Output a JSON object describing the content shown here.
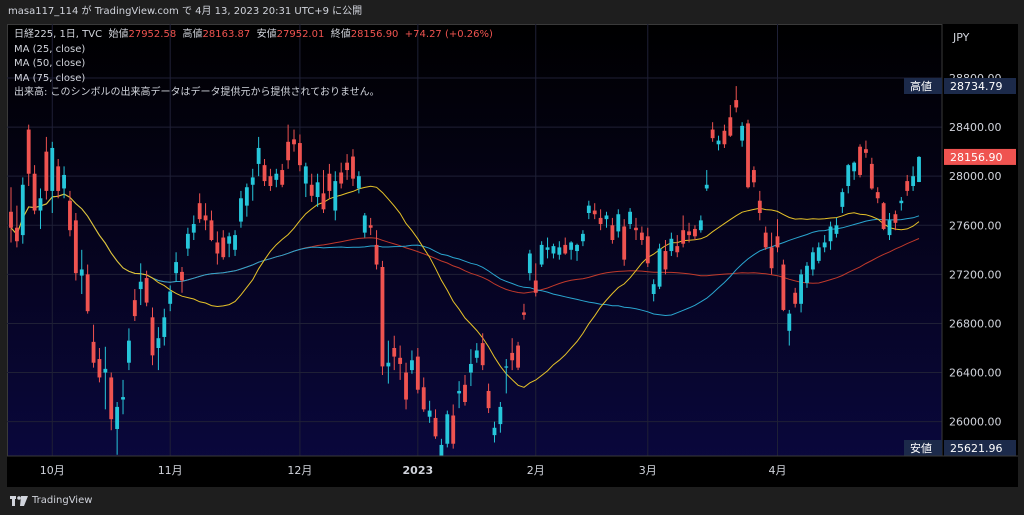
{
  "header": {
    "text": "masa117_114 が TradingView.com で 4月 13, 2023 20:31 UTC+9 に公開"
  },
  "legend": {
    "symbol_line": "日経225, 1日, TVC",
    "open_label": "始値",
    "open_value": "27952.58",
    "high_label": "高値",
    "high_value": "28163.87",
    "low_label": "安値",
    "low_value": "27952.01",
    "close_label": "終値",
    "close_value": "28156.90",
    "change": "+74.27 (+0.26%)",
    "ma25": "MA (25, close)",
    "ma50": "MA (50, close)",
    "ma75": "MA (75, close)",
    "volume_note": "出来高: このシンボルの出来高データはデータ提供元から提供されておりません。"
  },
  "footer": {
    "brand": "TradingView"
  },
  "colors": {
    "up": "#26c6da",
    "down": "#ef5350",
    "ma25": "#e6c229",
    "ma50": "#2aa6d0",
    "ma75": "#c0392b",
    "grid": "#1f2036",
    "axis_text": "#d1d4dc",
    "badge_blue": "#1c2a4a"
  },
  "chart_data": {
    "type": "candlestick",
    "currency": "JPY",
    "y_ticks": [
      26000,
      26400,
      26800,
      27200,
      27600,
      28000,
      28400,
      28800
    ],
    "y_tick_labels": [
      "26000.00",
      "26400.00",
      "26800.00",
      "27200.00",
      "27600.00",
      "28000.00",
      "28400.00",
      "28800.00"
    ],
    "ylim": [
      25720,
      29240
    ],
    "x_labels": [
      {
        "label": "10月",
        "date": "2022-10-03"
      },
      {
        "label": "11月",
        "date": "2022-11-01"
      },
      {
        "label": "12月",
        "date": "2022-12-01"
      },
      {
        "label": "2023",
        "date": "2023-01-04"
      },
      {
        "label": "2月",
        "date": "2023-02-01"
      },
      {
        "label": "3月",
        "date": "2023-03-01"
      },
      {
        "label": "4月",
        "date": "2023-04-03"
      }
    ],
    "markers": [
      {
        "label": "高値",
        "value": 28734.79,
        "text": "28734.79"
      },
      {
        "label": "終値",
        "value": 28156.9,
        "text": "28156.90"
      },
      {
        "label": "安値",
        "value": 25621.96,
        "text": "25621.96"
      }
    ],
    "candles": [
      [
        27710,
        27910,
        27460,
        27580
      ],
      [
        27580,
        27760,
        27420,
        27470
      ],
      [
        27520,
        27990,
        27450,
        27930
      ],
      [
        28380,
        28420,
        27920,
        28020
      ],
      [
        28020,
        28090,
        27690,
        27720
      ],
      [
        27720,
        27900,
        27570,
        27820
      ],
      [
        28200,
        28320,
        27810,
        27880
      ],
      [
        27880,
        28280,
        27700,
        28230
      ],
      [
        28080,
        28140,
        27820,
        27880
      ],
      [
        27900,
        28080,
        27820,
        28010
      ],
      [
        27800,
        27880,
        27510,
        27560
      ],
      [
        27640,
        27700,
        27150,
        27210
      ],
      [
        27190,
        27400,
        27040,
        27240
      ],
      [
        27200,
        27280,
        26880,
        26900
      ],
      [
        26650,
        26790,
        26440,
        26480
      ],
      [
        26510,
        26600,
        26320,
        26360
      ],
      [
        26400,
        26610,
        26100,
        26430
      ],
      [
        26360,
        26400,
        25930,
        26020
      ],
      [
        25940,
        26160,
        25730,
        26120
      ],
      [
        26180,
        26340,
        26060,
        26200
      ],
      [
        26480,
        26760,
        26420,
        26660
      ],
      [
        26990,
        27080,
        26820,
        26860
      ],
      [
        27080,
        27290,
        26950,
        27140
      ],
      [
        27170,
        27230,
        26940,
        26970
      ],
      [
        26850,
        26930,
        26460,
        26540
      ],
      [
        26600,
        26770,
        26420,
        26680
      ],
      [
        26690,
        26920,
        26620,
        26850
      ],
      [
        26960,
        27110,
        26900,
        27060
      ],
      [
        27210,
        27380,
        27140,
        27300
      ],
      [
        27220,
        27260,
        27050,
        27150
      ],
      [
        27410,
        27580,
        27350,
        27530
      ],
      [
        27540,
        27680,
        27480,
        27610
      ],
      [
        27780,
        27860,
        27620,
        27650
      ],
      [
        27680,
        27780,
        27560,
        27640
      ],
      [
        27640,
        27720,
        27470,
        27480
      ],
      [
        27460,
        27550,
        27280,
        27370
      ],
      [
        27500,
        27560,
        27320,
        27340
      ],
      [
        27450,
        27540,
        27340,
        27510
      ],
      [
        27400,
        27560,
        27350,
        27520
      ],
      [
        27630,
        27880,
        27580,
        27820
      ],
      [
        27760,
        27940,
        27670,
        27910
      ],
      [
        27930,
        28060,
        27800,
        27990
      ],
      [
        28100,
        28320,
        28000,
        28230
      ],
      [
        28090,
        28140,
        27920,
        27960
      ],
      [
        28000,
        28060,
        27880,
        27920
      ],
      [
        27970,
        28060,
        27910,
        28020
      ],
      [
        28050,
        28100,
        27910,
        27930
      ],
      [
        28280,
        28420,
        28060,
        28130
      ],
      [
        28300,
        28380,
        28200,
        28260
      ],
      [
        28270,
        28340,
        28040,
        28090
      ],
      [
        27940,
        28110,
        27830,
        28080
      ],
      [
        27930,
        28020,
        27790,
        27840
      ],
      [
        27830,
        28020,
        27750,
        27950
      ],
      [
        27860,
        28050,
        27700,
        27730
      ],
      [
        28020,
        28100,
        27820,
        27880
      ],
      [
        27720,
        28040,
        27640,
        27960
      ],
      [
        28030,
        28110,
        27900,
        27940
      ],
      [
        28110,
        28180,
        27970,
        28050
      ],
      [
        28160,
        28220,
        27920,
        27980
      ],
      [
        27900,
        28040,
        27860,
        28000
      ],
      [
        27540,
        27700,
        27500,
        27680
      ],
      [
        27600,
        27660,
        27520,
        27580
      ],
      [
        27440,
        27560,
        27240,
        27280
      ],
      [
        27260,
        27310,
        26380,
        26450
      ],
      [
        26450,
        26660,
        26310,
        26480
      ],
      [
        26600,
        26700,
        26420,
        26530
      ],
      [
        26520,
        26620,
        26340,
        26470
      ],
      [
        26400,
        26480,
        26100,
        26180
      ],
      [
        26420,
        26580,
        26390,
        26500
      ],
      [
        26530,
        26600,
        26230,
        26260
      ],
      [
        26280,
        26360,
        26080,
        26100
      ],
      [
        26040,
        26170,
        25990,
        26090
      ],
      [
        26030,
        26100,
        25860,
        25880
      ],
      [
        25720,
        25860,
        25621,
        25810
      ],
      [
        25820,
        26090,
        25790,
        26060
      ],
      [
        26050,
        26140,
        25780,
        25820
      ],
      [
        26230,
        26330,
        26110,
        26250
      ],
      [
        26300,
        26380,
        26130,
        26160
      ],
      [
        26400,
        26590,
        26290,
        26470
      ],
      [
        26520,
        26640,
        26480,
        26580
      ],
      [
        26640,
        26720,
        26420,
        26460
      ],
      [
        26250,
        26310,
        26070,
        26110
      ],
      [
        25890,
        26000,
        25830,
        25950
      ],
      [
        25980,
        26160,
        25910,
        26120
      ],
      [
        26440,
        26510,
        26230,
        26450
      ],
      [
        26560,
        26680,
        26420,
        26500
      ],
      [
        26620,
        26650,
        26420,
        26440
      ],
      [
        26890,
        26960,
        26830,
        26870
      ],
      [
        27210,
        27400,
        27150,
        27370
      ],
      [
        27150,
        27290,
        27020,
        27050
      ],
      [
        27280,
        27470,
        27260,
        27440
      ],
      [
        27400,
        27500,
        27330,
        27420
      ],
      [
        27370,
        27450,
        27330,
        27430
      ],
      [
        27360,
        27470,
        27320,
        27420
      ],
      [
        27440,
        27500,
        27360,
        27370
      ],
      [
        27400,
        27470,
        27320,
        27460
      ],
      [
        27390,
        27450,
        27310,
        27440
      ],
      [
        27470,
        27560,
        27430,
        27530
      ],
      [
        27700,
        27800,
        27650,
        27760
      ],
      [
        27720,
        27780,
        27650,
        27690
      ],
      [
        27660,
        27730,
        27560,
        27610
      ],
      [
        27650,
        27710,
        27580,
        27680
      ],
      [
        27600,
        27660,
        27450,
        27480
      ],
      [
        27550,
        27730,
        27500,
        27690
      ],
      [
        27590,
        27650,
        27270,
        27320
      ],
      [
        27610,
        27740,
        27570,
        27710
      ],
      [
        27580,
        27660,
        27480,
        27560
      ],
      [
        27540,
        27590,
        27440,
        27480
      ],
      [
        27510,
        27580,
        27260,
        27290
      ],
      [
        27040,
        27160,
        26980,
        27120
      ],
      [
        27100,
        27450,
        27080,
        27410
      ],
      [
        27390,
        27480,
        27200,
        27240
      ],
      [
        27390,
        27540,
        27350,
        27490
      ],
      [
        27430,
        27520,
        27340,
        27380
      ],
      [
        27560,
        27680,
        27420,
        27450
      ],
      [
        27550,
        27620,
        27460,
        27520
      ],
      [
        27570,
        27600,
        27480,
        27510
      ],
      [
        27560,
        27680,
        27540,
        27640
      ],
      [
        27900,
        28050,
        27880,
        27930
      ],
      [
        28380,
        28440,
        28280,
        28310
      ],
      [
        28260,
        28330,
        28210,
        28290
      ],
      [
        28370,
        28420,
        28230,
        28260
      ],
      [
        28480,
        28580,
        28320,
        28330
      ],
      [
        28620,
        28734,
        28520,
        28560
      ],
      [
        28290,
        28440,
        28240,
        28410
      ],
      [
        28430,
        28460,
        27900,
        27910
      ],
      [
        28050,
        28080,
        27910,
        27950
      ],
      [
        27800,
        27880,
        27640,
        27700
      ],
      [
        27540,
        27590,
        27400,
        27420
      ],
      [
        27420,
        27540,
        27200,
        27250
      ],
      [
        27510,
        27650,
        27380,
        27420
      ],
      [
        27280,
        27320,
        26900,
        26910
      ],
      [
        26740,
        26910,
        26620,
        26880
      ],
      [
        27050,
        27090,
        26930,
        26960
      ],
      [
        26960,
        27240,
        26890,
        27200
      ],
      [
        27130,
        27300,
        27090,
        27270
      ],
      [
        27240,
        27420,
        27190,
        27380
      ],
      [
        27310,
        27460,
        27290,
        27420
      ],
      [
        27420,
        27520,
        27380,
        27460
      ],
      [
        27470,
        27630,
        27400,
        27590
      ],
      [
        27530,
        27660,
        27500,
        27600
      ],
      [
        27750,
        27900,
        27700,
        27870
      ],
      [
        27920,
        28100,
        27860,
        28090
      ],
      [
        28040,
        28120,
        27970,
        28110
      ],
      [
        28240,
        28260,
        27990,
        28010
      ],
      [
        28220,
        28290,
        28150,
        28190
      ],
      [
        28100,
        28150,
        27890,
        27900
      ],
      [
        27870,
        27910,
        27780,
        27820
      ],
      [
        27780,
        27790,
        27560,
        27570
      ],
      [
        27520,
        27700,
        27480,
        27640
      ],
      [
        27690,
        27720,
        27560,
        27620
      ],
      [
        27780,
        27830,
        27720,
        27800
      ],
      [
        27960,
        28010,
        27840,
        27880
      ],
      [
        27920,
        28080,
        27880,
        28000
      ],
      [
        27952.58,
        28163.87,
        27952.01,
        28156.9
      ]
    ]
  }
}
